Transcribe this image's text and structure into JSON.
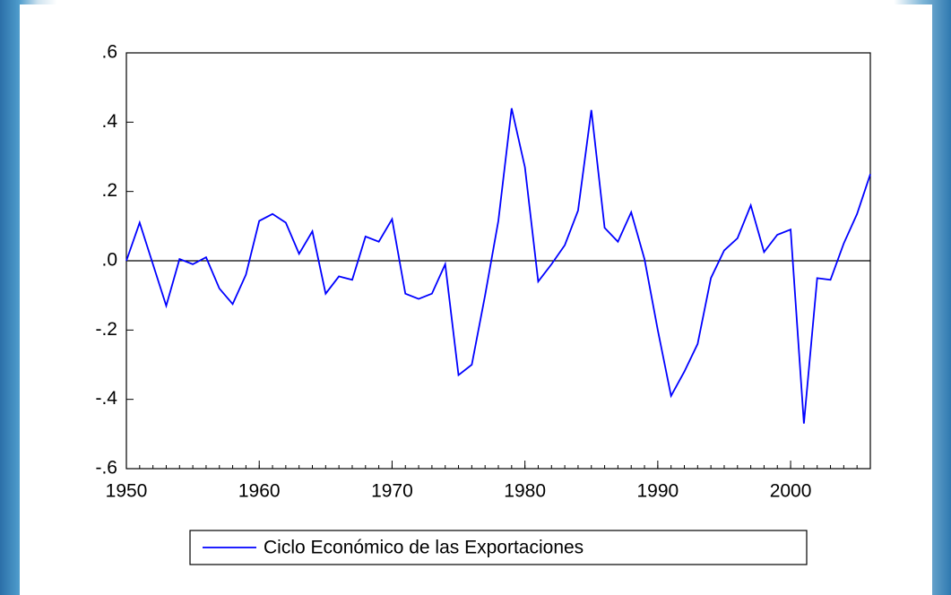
{
  "chart_data": {
    "type": "line",
    "x": [
      1950,
      1951,
      1952,
      1953,
      1954,
      1955,
      1956,
      1957,
      1958,
      1959,
      1960,
      1961,
      1962,
      1963,
      1964,
      1965,
      1966,
      1967,
      1968,
      1969,
      1970,
      1971,
      1972,
      1973,
      1974,
      1975,
      1976,
      1977,
      1978,
      1979,
      1980,
      1981,
      1982,
      1983,
      1984,
      1985,
      1986,
      1987,
      1988,
      1989,
      1990,
      1991,
      1992,
      1993,
      1994,
      1995,
      1996,
      1997,
      1998,
      1999,
      2000,
      2001,
      2002,
      2003,
      2004,
      2005,
      2006
    ],
    "series": [
      {
        "name": "Ciclo Económico de las Exportaciones",
        "color": "#0000ff",
        "values": [
          0.0,
          0.11,
          -0.01,
          -0.13,
          0.005,
          -0.01,
          0.01,
          -0.08,
          -0.125,
          -0.04,
          0.115,
          0.135,
          0.11,
          0.02,
          0.085,
          -0.095,
          -0.045,
          -0.055,
          0.07,
          0.055,
          0.12,
          -0.095,
          -0.11,
          -0.095,
          -0.01,
          -0.33,
          -0.3,
          -0.1,
          0.115,
          0.44,
          0.27,
          -0.06,
          -0.01,
          0.045,
          0.145,
          0.435,
          0.095,
          0.055,
          0.14,
          0.005,
          -0.2,
          -0.39,
          -0.32,
          -0.24,
          -0.05,
          0.03,
          0.065,
          0.16,
          0.025,
          0.075,
          0.09,
          -0.47,
          -0.05,
          -0.055,
          0.05,
          0.135,
          0.25
        ]
      }
    ],
    "xlim": [
      1950,
      2006
    ],
    "xticks": [
      1950,
      1960,
      1970,
      1980,
      1990,
      2000
    ],
    "ylim": [
      -0.6,
      0.6
    ],
    "yticks": [
      {
        "value": -0.6,
        "label": "-.6"
      },
      {
        "value": -0.4,
        "label": "-.4"
      },
      {
        "value": -0.2,
        "label": "-.2"
      },
      {
        "value": 0,
        "label": ".0"
      },
      {
        "value": 0.2,
        "label": ".2"
      },
      {
        "value": 0.4,
        "label": ".4"
      },
      {
        "value": 0.6,
        "label": ".6"
      }
    ],
    "zero_line": true,
    "legend": "bottom"
  }
}
